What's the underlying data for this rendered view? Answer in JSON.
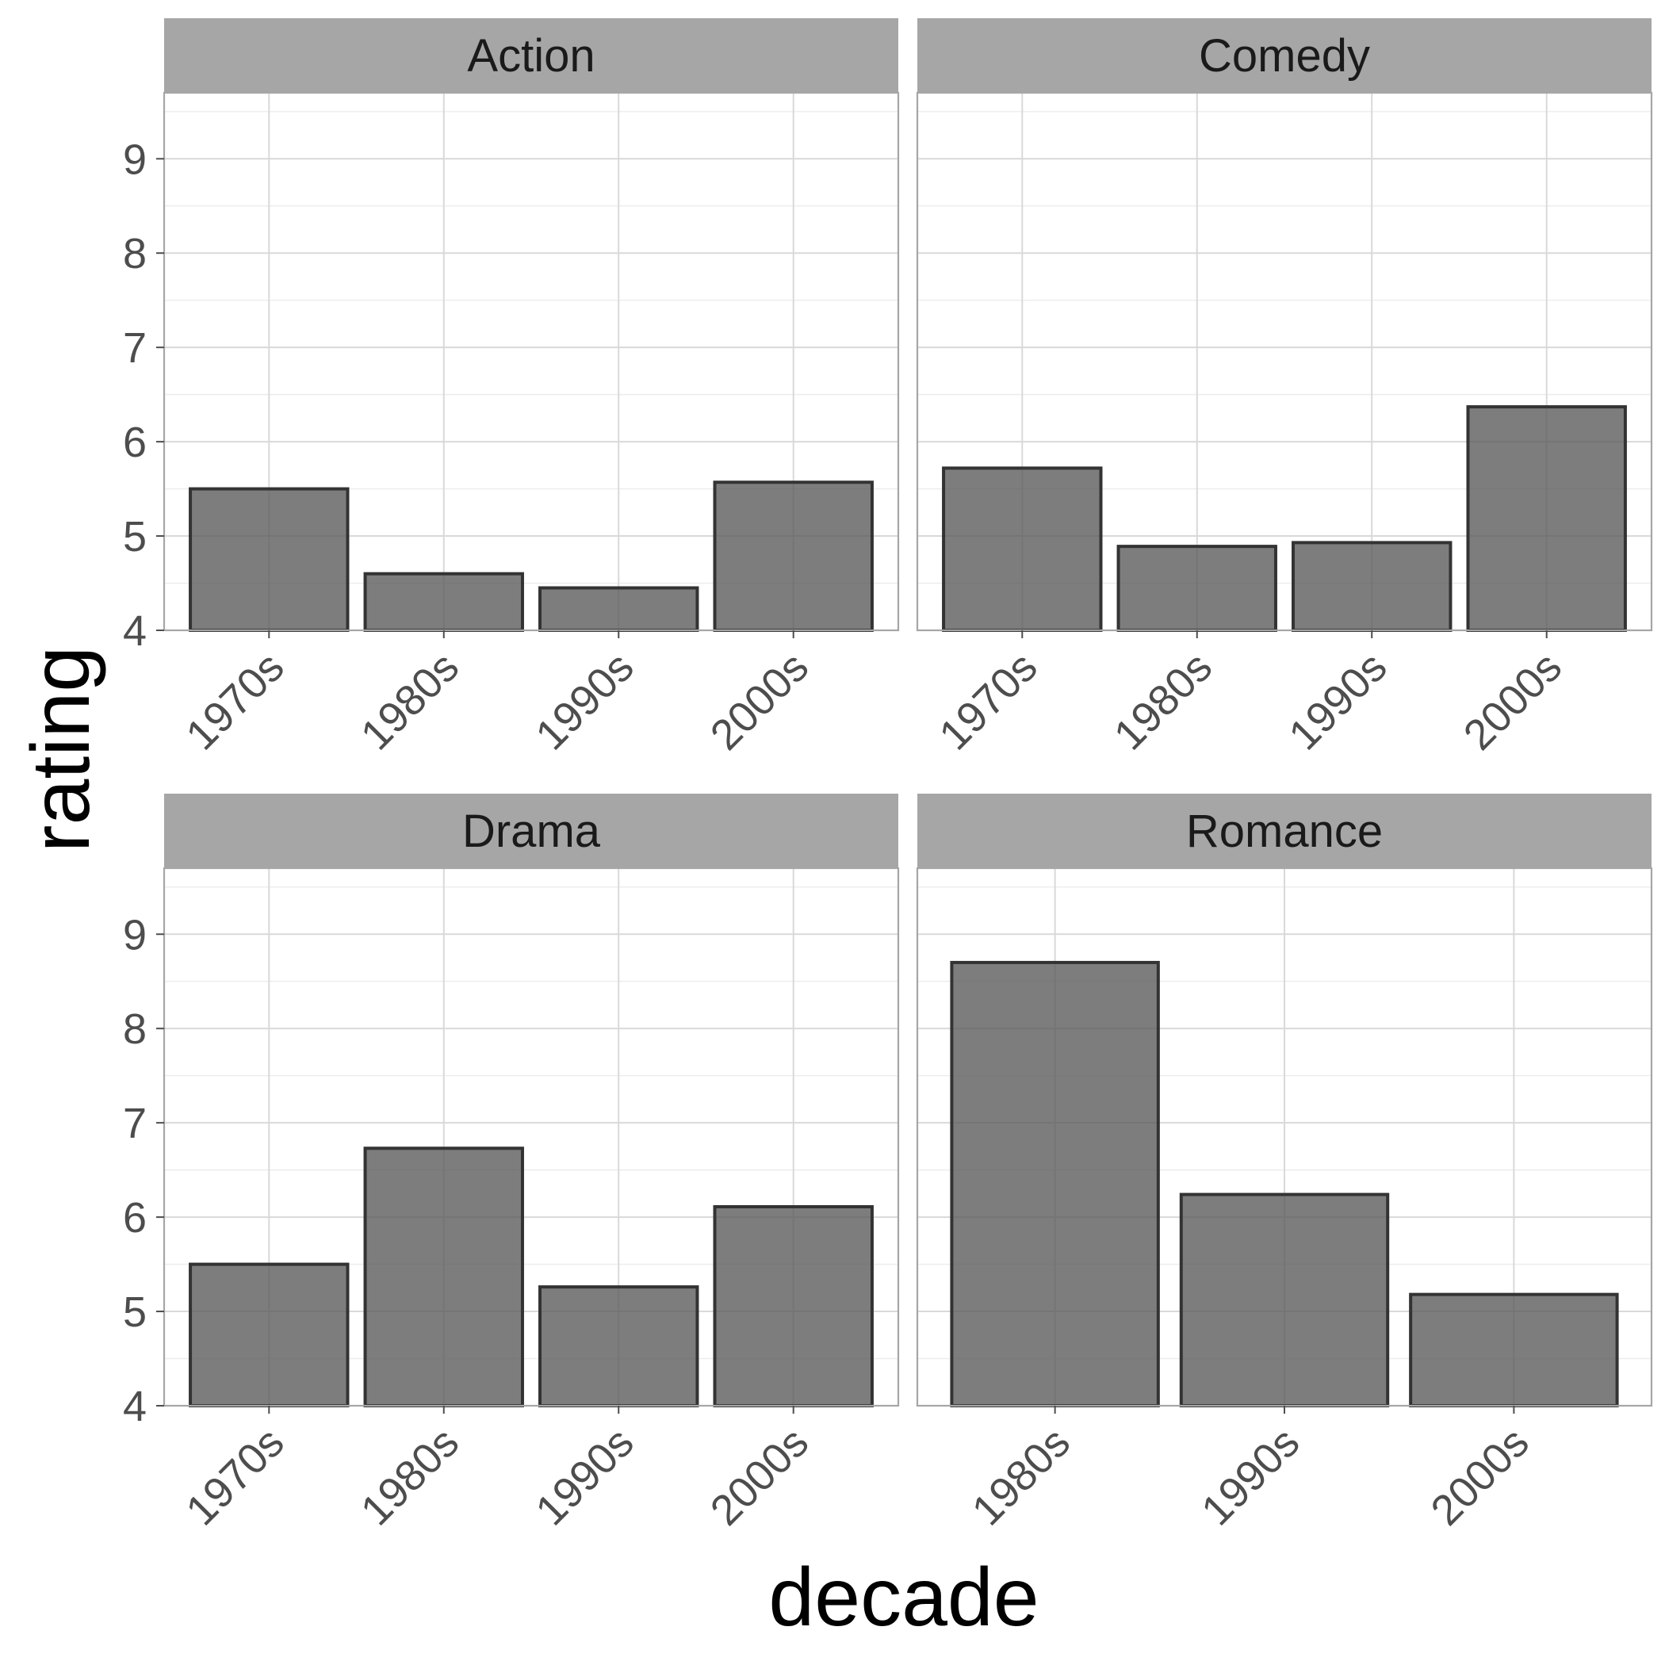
{
  "chart_data": {
    "type": "bar",
    "xlabel": "decade",
    "ylabel": "rating",
    "ylim": [
      4,
      9.7
    ],
    "yticks": [
      "4",
      "5",
      "6",
      "7",
      "8",
      "9"
    ],
    "grid": true,
    "panels": [
      {
        "title": "Action",
        "categories": [
          "1970s",
          "1980s",
          "1990s",
          "2000s"
        ],
        "values": [
          5.5,
          4.6,
          4.45,
          5.57
        ]
      },
      {
        "title": "Comedy",
        "categories": [
          "1970s",
          "1980s",
          "1990s",
          "2000s"
        ],
        "values": [
          5.72,
          4.89,
          4.93,
          6.37
        ]
      },
      {
        "title": "Drama",
        "categories": [
          "1970s",
          "1980s",
          "1990s",
          "2000s"
        ],
        "values": [
          5.5,
          6.73,
          5.26,
          6.11
        ]
      },
      {
        "title": "Romance",
        "categories": [
          "1980s",
          "1990s",
          "2000s"
        ],
        "values": [
          8.7,
          6.24,
          5.18
        ]
      }
    ]
  }
}
